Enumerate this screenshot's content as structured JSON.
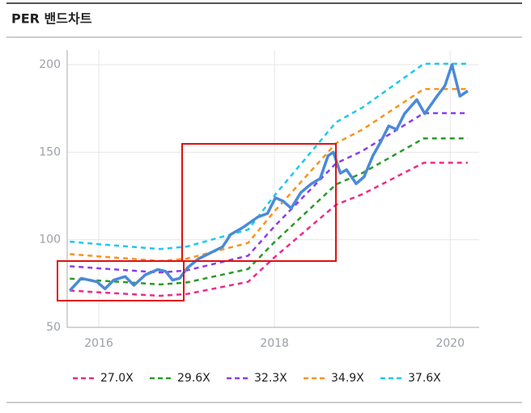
{
  "header": {
    "title": "PER 밴드차트"
  },
  "chart_data": {
    "type": "line",
    "xlim": [
      2015.64,
      2020.33
    ],
    "xticks": [
      2016,
      2018,
      2020
    ],
    "ylim": [
      50,
      200
    ],
    "yticks": [
      50,
      100,
      150,
      200
    ],
    "grid": true,
    "series": [
      {
        "name": "27.0X",
        "color": "#ee2a8c",
        "dash": true,
        "x": [
          2015.67,
          2016.0,
          2016.7,
          2017.0,
          2017.7,
          2018.0,
          2018.7,
          2019.0,
          2019.7,
          2020.2
        ],
        "values": [
          71,
          70,
          68,
          69,
          76,
          90,
          120,
          126,
          144,
          144
        ]
      },
      {
        "name": "29.6X",
        "color": "#2a9a2a",
        "dash": true,
        "x": [
          2015.67,
          2016.0,
          2016.7,
          2017.0,
          2017.7,
          2018.0,
          2018.7,
          2019.0,
          2019.7,
          2020.2
        ],
        "values": [
          77.8,
          76.7,
          74.5,
          75.6,
          83.3,
          98.7,
          131.6,
          138.1,
          157.9,
          157.9
        ]
      },
      {
        "name": "32.3X",
        "color": "#8a3cf0",
        "dash": true,
        "x": [
          2015.67,
          2016.0,
          2016.7,
          2017.0,
          2017.7,
          2018.0,
          2018.7,
          2019.0,
          2019.7,
          2020.2
        ],
        "values": [
          84.9,
          83.7,
          81.3,
          82.5,
          90.9,
          107.7,
          143.6,
          150.7,
          172.3,
          172.3
        ]
      },
      {
        "name": "34.9X",
        "color": "#f7941d",
        "dash": true,
        "x": [
          2015.67,
          2016.0,
          2016.7,
          2017.0,
          2017.7,
          2018.0,
          2018.7,
          2019.0,
          2019.7,
          2020.2
        ],
        "values": [
          91.8,
          90.5,
          87.9,
          89.2,
          98.2,
          116.3,
          155.1,
          162.9,
          186.1,
          186.1
        ]
      },
      {
        "name": "37.6X",
        "color": "#1ec8f0",
        "dash": true,
        "x": [
          2015.67,
          2016.0,
          2016.7,
          2017.0,
          2017.7,
          2018.0,
          2018.7,
          2019.0,
          2019.7,
          2020.2
        ],
        "values": [
          98.9,
          97.5,
          94.7,
          96.1,
          105.8,
          125.3,
          167.1,
          175.5,
          200.5,
          200.5
        ]
      },
      {
        "color": "#4a8ad8",
        "dash": false,
        "x": [
          2015.67,
          2015.8,
          2015.98,
          2016.07,
          2016.17,
          2016.3,
          2016.4,
          2016.53,
          2016.67,
          2016.76,
          2016.84,
          2016.92,
          2017.01,
          2017.13,
          2017.29,
          2017.41,
          2017.5,
          2017.64,
          2017.81,
          2017.92,
          2018.01,
          2018.1,
          2018.19,
          2018.3,
          2018.42,
          2018.52,
          2018.61,
          2018.67,
          2018.75,
          2018.82,
          2018.93,
          2019.02,
          2019.12,
          2019.21,
          2019.3,
          2019.39,
          2019.48,
          2019.62,
          2019.71,
          2019.85,
          2019.94,
          2020.02,
          2020.11,
          2020.2
        ],
        "values": [
          71,
          78,
          76,
          72,
          77,
          79,
          74,
          80,
          83,
          82,
          77,
          78,
          84,
          89,
          93,
          96,
          103,
          107,
          113,
          115,
          124,
          122,
          118,
          127,
          132,
          135,
          148,
          150,
          138,
          140,
          132,
          136,
          148,
          156,
          165,
          163,
          172,
          180,
          172,
          182,
          188,
          200,
          182,
          185
        ]
      }
    ]
  }
}
